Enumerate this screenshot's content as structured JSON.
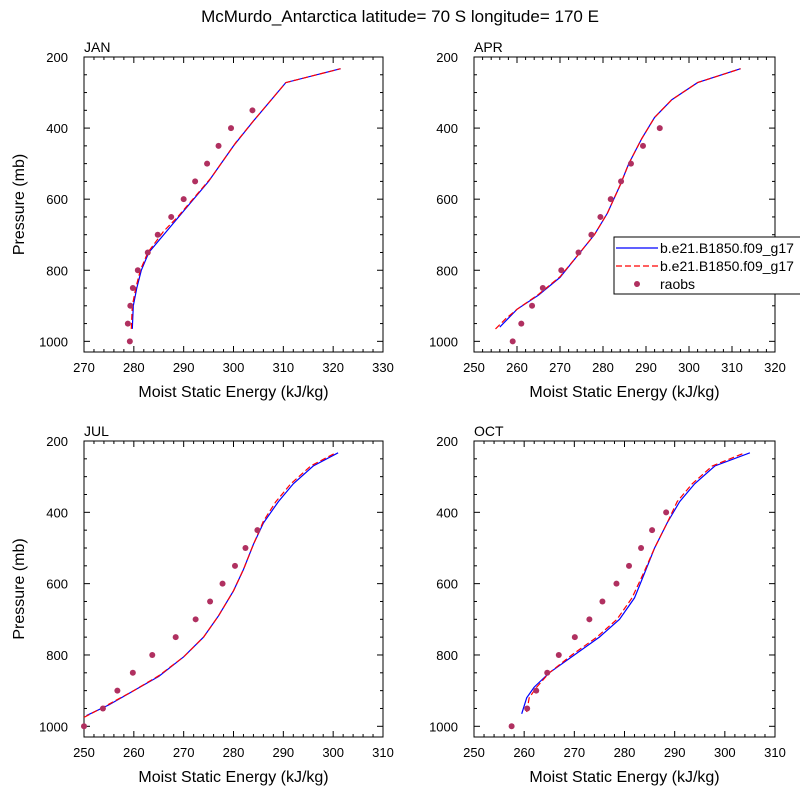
{
  "title": "McMurdo_Antarctica  latitude= 70 S longitude= 170 E",
  "legend": {
    "entries": [
      {
        "label": "b.e21.B1850.f09_g17",
        "style": "solid",
        "color": "#0000ff"
      },
      {
        "label": "b.e21.B1850.f09_g17",
        "style": "dashed",
        "color": "#ff0000"
      },
      {
        "label": "raobs",
        "style": "marker",
        "color": "#b03060"
      }
    ]
  },
  "colors": {
    "solid_line": "#0000ff",
    "dashed_line": "#ff0000",
    "raobs": "#b03060"
  },
  "chart_data": [
    {
      "type": "line",
      "panel_label": "JAN",
      "xlabel": "Moist Static Energy (kJ/kg)",
      "ylabel": "Pressure (mb)",
      "xlim": [
        270,
        330
      ],
      "ylim": [
        1030,
        200
      ],
      "y_inverted": true,
      "xticks": [
        270,
        280,
        290,
        300,
        310,
        320,
        330
      ],
      "yticks": [
        200,
        400,
        600,
        800,
        1000
      ],
      "series": [
        {
          "line_style": "solid",
          "color": "#0000ff",
          "points": [
            [
              279.7,
              965
            ],
            [
              279.9,
              900
            ],
            [
              280.6,
              850
            ],
            [
              281.5,
              800
            ],
            [
              283,
              750
            ],
            [
              286,
              700
            ],
            [
              289,
              650
            ],
            [
              295,
              550
            ],
            [
              300,
              450
            ],
            [
              304,
              380
            ],
            [
              310.5,
              272
            ],
            [
              321.5,
              233
            ]
          ]
        },
        {
          "line_style": "dashed",
          "color": "#ff0000",
          "points": [
            [
              279.5,
              965
            ],
            [
              279.7,
              900
            ],
            [
              280.4,
              850
            ],
            [
              281.3,
              800
            ],
            [
              282.8,
              750
            ],
            [
              286,
              690
            ],
            [
              288.8,
              650
            ],
            [
              295.5,
              540
            ],
            [
              300.5,
              440
            ],
            [
              304,
              380
            ],
            [
              310.5,
              272
            ],
            [
              321.5,
              233
            ]
          ]
        },
        {
          "line_style": "marker",
          "color": "#b03060",
          "points": [
            [
              279.2,
              1000
            ],
            [
              278.8,
              950
            ],
            [
              279.3,
              900
            ],
            [
              279.8,
              850
            ],
            [
              280.8,
              800
            ],
            [
              282.8,
              750
            ],
            [
              284.8,
              700
            ],
            [
              287.5,
              650
            ],
            [
              290,
              600
            ],
            [
              292.3,
              550
            ],
            [
              294.7,
              500
            ],
            [
              297,
              450
            ],
            [
              299.5,
              400
            ],
            [
              303.8,
              350
            ]
          ]
        }
      ]
    },
    {
      "type": "line",
      "panel_label": "APR",
      "xlabel": "Moist Static Energy (kJ/kg)",
      "ylabel": "",
      "xlim": [
        250,
        320
      ],
      "ylim": [
        1030,
        200
      ],
      "y_inverted": true,
      "xticks": [
        250,
        260,
        270,
        280,
        290,
        300,
        310,
        320
      ],
      "yticks": [
        200,
        400,
        600,
        800,
        1000
      ],
      "series": [
        {
          "line_style": "solid",
          "color": "#0000ff",
          "points": [
            [
              256,
              960
            ],
            [
              258,
              935
            ],
            [
              260,
              910
            ],
            [
              265,
              870
            ],
            [
              270,
              820
            ],
            [
              274,
              760
            ],
            [
              278,
              700
            ],
            [
              281,
              640
            ],
            [
              284,
              560
            ],
            [
              286,
              500
            ],
            [
              289,
              430
            ],
            [
              292,
              370
            ],
            [
              296,
              320
            ],
            [
              302,
              272
            ],
            [
              312,
              233
            ]
          ]
        },
        {
          "line_style": "dashed",
          "color": "#ff0000",
          "points": [
            [
              255,
              965
            ],
            [
              257.5,
              935
            ],
            [
              260,
              910
            ],
            [
              265,
              868
            ],
            [
              270,
              818
            ],
            [
              274,
              760
            ],
            [
              278,
              700
            ],
            [
              281,
              640
            ],
            [
              284,
              560
            ],
            [
              286,
              500
            ],
            [
              289,
              430
            ],
            [
              292,
              370
            ],
            [
              296,
              320
            ],
            [
              302,
              272
            ],
            [
              312,
              233
            ]
          ]
        },
        {
          "line_style": "marker",
          "color": "#b03060",
          "points": [
            [
              259,
              1000
            ],
            [
              261,
              950
            ],
            [
              263.5,
              900
            ],
            [
              266,
              850
            ],
            [
              270.3,
              800
            ],
            [
              274.3,
              750
            ],
            [
              277.3,
              700
            ],
            [
              279.4,
              650
            ],
            [
              281.8,
              600
            ],
            [
              284.2,
              550
            ],
            [
              286.5,
              500
            ],
            [
              289.3,
              450
            ],
            [
              293.2,
              400
            ]
          ]
        }
      ]
    },
    {
      "type": "line",
      "panel_label": "JUL",
      "xlabel": "Moist Static Energy (kJ/kg)",
      "ylabel": "Pressure (mb)",
      "xlim": [
        250,
        310
      ],
      "ylim": [
        1030,
        200
      ],
      "y_inverted": true,
      "xticks": [
        250,
        260,
        270,
        280,
        290,
        300,
        310
      ],
      "yticks": [
        200,
        400,
        600,
        800,
        1000
      ],
      "series": [
        {
          "line_style": "solid",
          "color": "#0000ff",
          "points": [
            [
              250.5,
              970
            ],
            [
              255,
              940
            ],
            [
              260,
              900
            ],
            [
              265,
              860
            ],
            [
              270,
              805
            ],
            [
              274,
              750
            ],
            [
              277,
              690
            ],
            [
              280,
              620
            ],
            [
              282,
              560
            ],
            [
              284,
              490
            ],
            [
              286,
              430
            ],
            [
              289,
              370
            ],
            [
              292,
              320
            ],
            [
              296,
              270
            ],
            [
              301,
              233
            ]
          ]
        },
        {
          "line_style": "dashed",
          "color": "#ff0000",
          "points": [
            [
              250,
              975
            ],
            [
              255,
              938
            ],
            [
              260,
              900
            ],
            [
              265,
              858
            ],
            [
              270,
              805
            ],
            [
              274,
              750
            ],
            [
              277,
              690
            ],
            [
              280,
              620
            ],
            [
              282,
              560
            ],
            [
              284,
              490
            ],
            [
              286,
              425
            ],
            [
              288.5,
              370
            ],
            [
              291.5,
              320
            ],
            [
              295.5,
              270
            ],
            [
              300.5,
              233
            ]
          ]
        },
        {
          "line_style": "marker",
          "color": "#b03060",
          "points": [
            [
              250,
              1000
            ],
            [
              253.8,
              950
            ],
            [
              256.7,
              900
            ],
            [
              259.8,
              850
            ],
            [
              263.7,
              800
            ],
            [
              268.4,
              750
            ],
            [
              272.4,
              700
            ],
            [
              275.3,
              650
            ],
            [
              277.8,
              600
            ],
            [
              280.3,
              550
            ],
            [
              282.4,
              500
            ],
            [
              284.8,
              450
            ]
          ]
        }
      ]
    },
    {
      "type": "line",
      "panel_label": "OCT",
      "xlabel": "Moist Static Energy (kJ/kg)",
      "ylabel": "",
      "xlim": [
        250,
        310
      ],
      "ylim": [
        1030,
        200
      ],
      "y_inverted": true,
      "xticks": [
        250,
        260,
        270,
        280,
        290,
        300,
        310
      ],
      "yticks": [
        200,
        400,
        600,
        800,
        1000
      ],
      "series": [
        {
          "line_style": "solid",
          "color": "#0000ff",
          "points": [
            [
              259.5,
              965
            ],
            [
              260.5,
              920
            ],
            [
              262,
              890
            ],
            [
              265,
              850
            ],
            [
              270,
              800
            ],
            [
              275,
              750
            ],
            [
              279,
              700
            ],
            [
              282,
              640
            ],
            [
              284,
              570
            ],
            [
              286,
              500
            ],
            [
              288.5,
              430
            ],
            [
              291,
              370
            ],
            [
              294,
              320
            ],
            [
              298,
              270
            ],
            [
              305,
              233
            ]
          ]
        },
        {
          "line_style": "dashed",
          "color": "#ff0000",
          "points": [
            [
              260.5,
              960
            ],
            [
              261,
              920
            ],
            [
              262.5,
              890
            ],
            [
              265,
              850
            ],
            [
              269.5,
              800
            ],
            [
              274.5,
              750
            ],
            [
              278.5,
              700
            ],
            [
              281.5,
              640
            ],
            [
              283.8,
              570
            ],
            [
              286,
              500
            ],
            [
              288.5,
              430
            ],
            [
              290.5,
              370
            ],
            [
              293.5,
              320
            ],
            [
              297.5,
              270
            ],
            [
              304,
              233
            ]
          ]
        },
        {
          "line_style": "marker",
          "color": "#b03060",
          "points": [
            [
              257.5,
              1000
            ],
            [
              260.6,
              950
            ],
            [
              262.4,
              900
            ],
            [
              264.6,
              850
            ],
            [
              266.9,
              800
            ],
            [
              270.1,
              750
            ],
            [
              273,
              700
            ],
            [
              275.6,
              650
            ],
            [
              278.4,
              600
            ],
            [
              280.9,
              550
            ],
            [
              283.3,
              500
            ],
            [
              285.5,
              450
            ],
            [
              288.3,
              400
            ]
          ]
        }
      ]
    }
  ]
}
